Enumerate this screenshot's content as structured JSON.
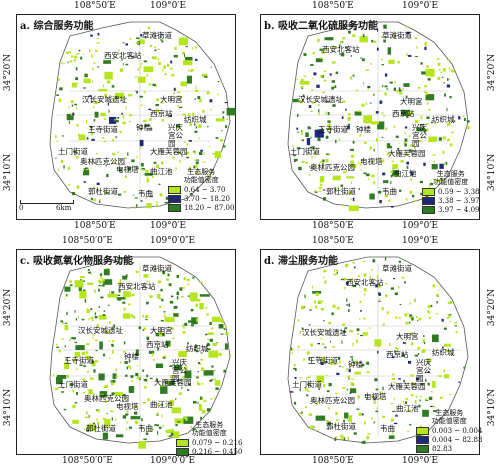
{
  "coords": {
    "lon_left": "108°50′E",
    "lon_right": "109°0′E",
    "lon_left_c": "108°50′0″E",
    "lon_right_c": "109°0′0″E",
    "lat_top": "34°20′N",
    "lat_bottom": "34°10′N"
  },
  "panels": {
    "a": {
      "title": "a. 综合服务功能",
      "legend_title": "生态服务\n功能值密度",
      "legend": [
        {
          "label": "0.64 ~ 3.70",
          "color": "#b5e61d"
        },
        {
          "label": "3.70 ~ 18.20",
          "color": "#1e2a78"
        },
        {
          "label": "18.20 ~ 87.00",
          "color": "#2f7a22"
        }
      ],
      "scale_zero": "0",
      "scale_label": "6km"
    },
    "b": {
      "title": "b. 吸收二氧化硫服务功能",
      "legend_title": "生态服务\n功能值密度",
      "legend": [
        {
          "label": "0.59 ~ 3.38",
          "color": "#b5e61d"
        },
        {
          "label": "3.38 ~ 3.97",
          "color": "#1e2a78"
        },
        {
          "label": "3.97 ~ 4.09",
          "color": "#2f7a22"
        }
      ]
    },
    "c": {
      "title": "c. 吸收氮氧化物服务功能",
      "legend_title": "生态服务\n功能值密度",
      "legend": [
        {
          "label": "0.079 ~ 0.216",
          "color": "#b5e61d"
        },
        {
          "label": "0.216 ~ 0.450",
          "color": "#2f7a22"
        }
      ]
    },
    "d": {
      "title": "d. 滞尘服务功能",
      "legend_title": "生态服务\n功能值密度",
      "legend": [
        {
          "label": "0.003 ~ 0.004",
          "color": "#b5e61d"
        },
        {
          "label": "0.004 ~ 82.83",
          "color": "#1e2a78"
        },
        {
          "label": "82.83",
          "color": "#2f7a22"
        }
      ]
    }
  },
  "places": {
    "caotan": "草滩街道",
    "xian_north": "西安北客站",
    "hanchang": "汉长安城遗址",
    "daming": "大明宫",
    "zhonglou": "钟楼",
    "xijing": "西京站",
    "fangzhi": "纺织城",
    "wangsi": "王寺街道",
    "xingqing": "兴庆宫公园",
    "tumen": "土门街道",
    "aolinpike": "奥林匹克公园",
    "dayan": "大雁芙蓉园",
    "dianshita": "电视塔",
    "qujiang": "曲江池",
    "guodu": "郭杜街道",
    "weiqu": "韦曲"
  }
}
